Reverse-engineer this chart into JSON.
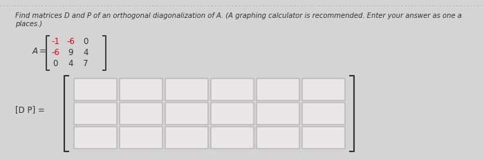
{
  "background_color": "#d4d4d4",
  "title_text": "Find matrices D and P of an orthogonal diagonalization of A. (A graphing calculator is recommended. Enter your answer as one a",
  "subtitle_text": "places.)",
  "matrix_rows": [
    [
      "-1",
      "-6",
      "0"
    ],
    [
      "-6",
      "9",
      "4"
    ],
    [
      "0",
      "4",
      "7"
    ]
  ],
  "matrix_red": [
    [
      true,
      true,
      false
    ],
    [
      true,
      false,
      false
    ],
    [
      false,
      false,
      false
    ]
  ],
  "answer_label": "[D P] =",
  "grid_rows": 3,
  "grid_cols": 6,
  "cell_color": "#e8e6e6",
  "cell_border_color": "#b0aaaa",
  "text_color_normal": "#333333",
  "text_color_red": "#cc1111",
  "top_border_color": "#aaaaaa",
  "font_size_title": 7.2,
  "font_size_matrix": 8.5,
  "font_size_label": 8.5
}
